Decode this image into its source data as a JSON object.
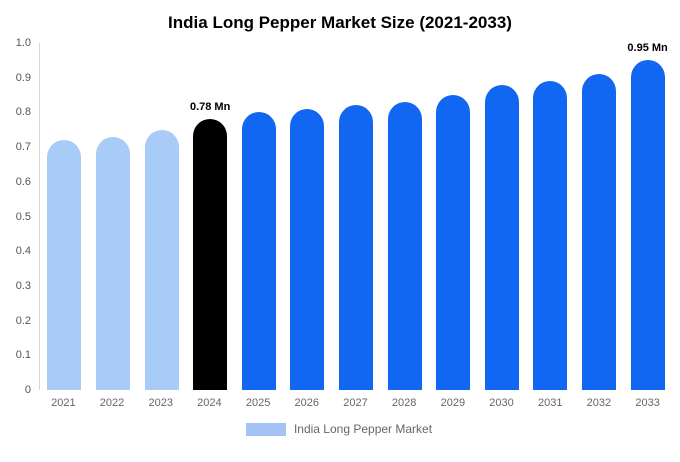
{
  "chart_data": {
    "type": "bar",
    "title": "India Long Pepper Market Size (2021-2033)",
    "categories": [
      "2021",
      "2022",
      "2023",
      "2024",
      "2025",
      "2026",
      "2027",
      "2028",
      "2029",
      "2030",
      "2031",
      "2032",
      "2033"
    ],
    "values": [
      0.72,
      0.73,
      0.75,
      0.78,
      0.8,
      0.81,
      0.82,
      0.83,
      0.85,
      0.88,
      0.89,
      0.91,
      0.95
    ],
    "bar_colors": [
      "#a8cbf7",
      "#a8cbf7",
      "#a8cbf7",
      "#000000",
      "#1267f2",
      "#1267f2",
      "#1267f2",
      "#1267f2",
      "#1267f2",
      "#1267f2",
      "#1267f2",
      "#1267f2",
      "#1267f2"
    ],
    "annotations": [
      {
        "index": 3,
        "text": "0.78 Mn"
      },
      {
        "index": 12,
        "text": "0.95 Mn"
      }
    ],
    "xlabel": "",
    "ylabel": "",
    "ylim": [
      0,
      1.0
    ],
    "yticks": [
      1.0,
      0.9,
      0.8,
      0.7,
      0.6,
      0.5,
      0.4,
      0.3,
      0.2,
      0.1,
      0
    ],
    "ytick_labels": [
      "1.0",
      "0.9",
      "0.8",
      "0.7",
      "0.6",
      "0.5",
      "0.4",
      "0.3",
      "0.2",
      "0.1",
      "0"
    ],
    "grid": false,
    "legend_position": "bottom"
  },
  "legend": {
    "label": "India Long Pepper Market",
    "swatch_color": "#a4c2f4"
  }
}
